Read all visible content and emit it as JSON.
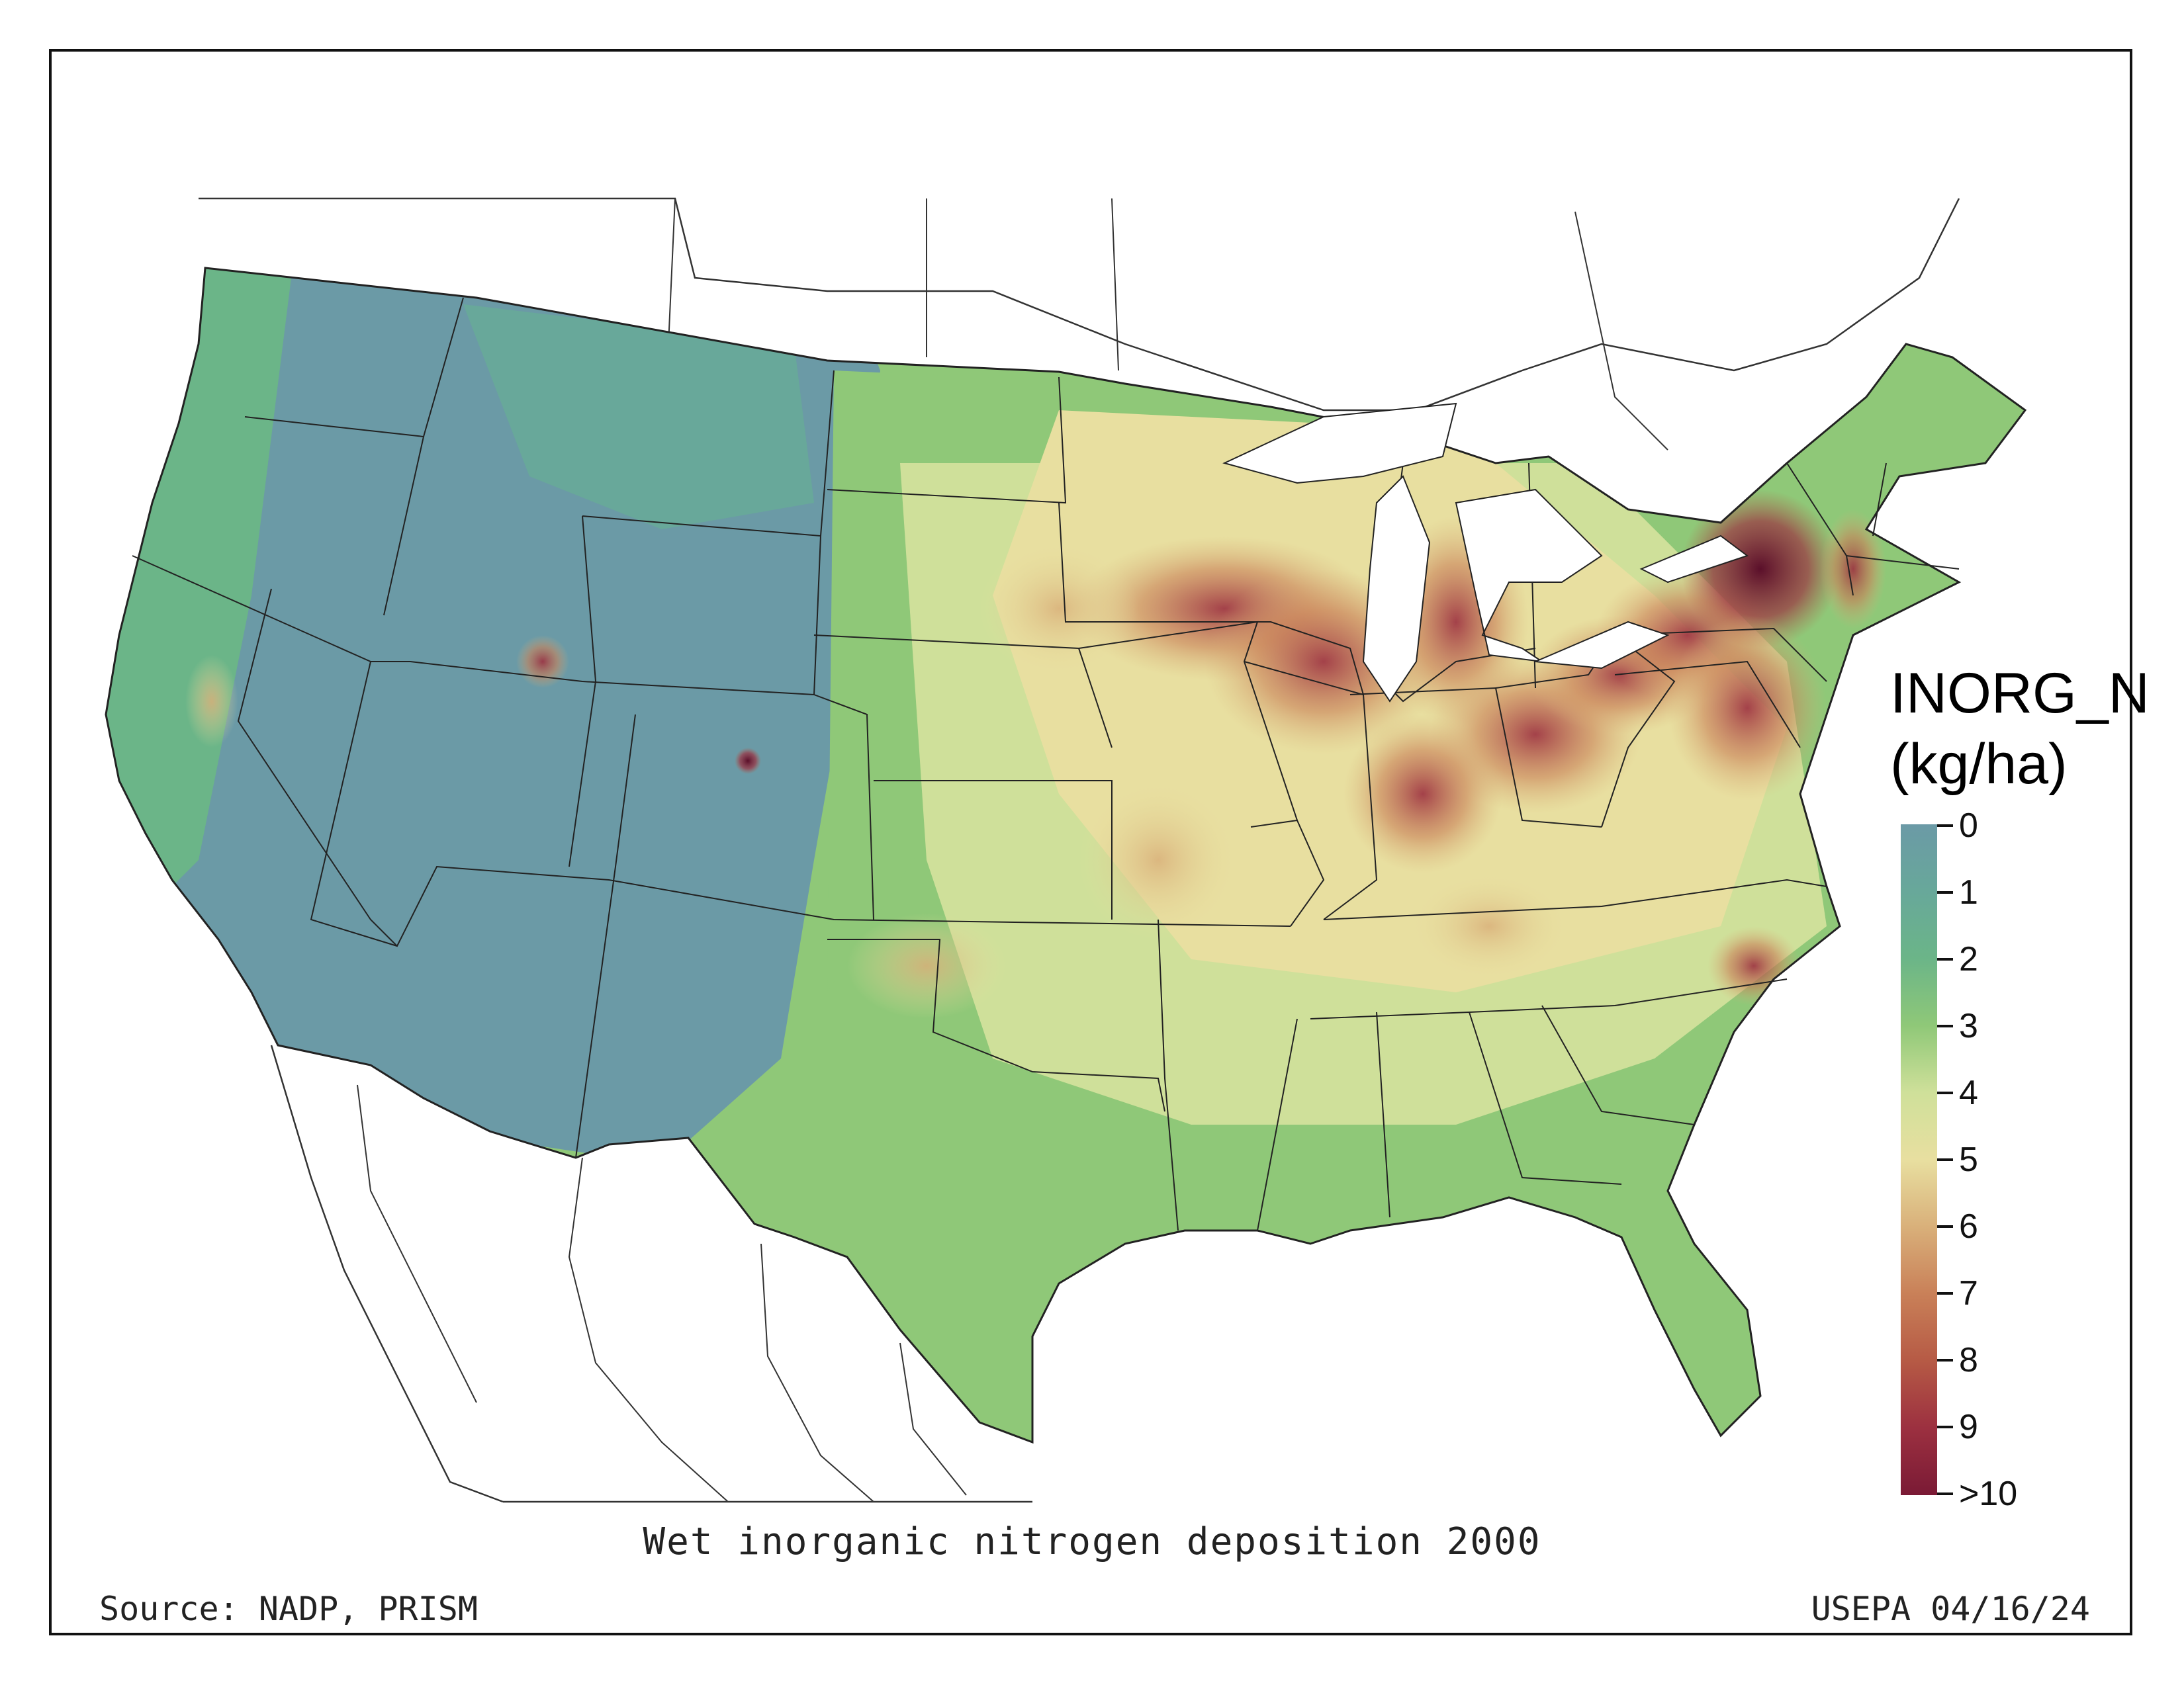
{
  "map": {
    "title": "Wet inorganic nitrogen deposition 2000",
    "source": "Source: NADP, PRISM",
    "credit": "USEPA 04/16/24"
  },
  "legend": {
    "title_line1": "INORG_N",
    "title_line2": "(kg/ha)",
    "ticks": [
      "0",
      "1",
      "2",
      "3",
      "4",
      "5",
      "6",
      "7",
      "8",
      "9",
      ">10"
    ],
    "colors": [
      "#6b9aa6",
      "#68a89a",
      "#6bb588",
      "#8fc878",
      "#cfe09a",
      "#e8dfa0",
      "#d9b07a",
      "#c98058",
      "#b65a45",
      "#9c3040",
      "#7a1a35"
    ]
  },
  "colors": {
    "low": "#6b9aa6",
    "mid": "#e8dfa0",
    "high": "#7a1a35",
    "border": "#222222"
  }
}
